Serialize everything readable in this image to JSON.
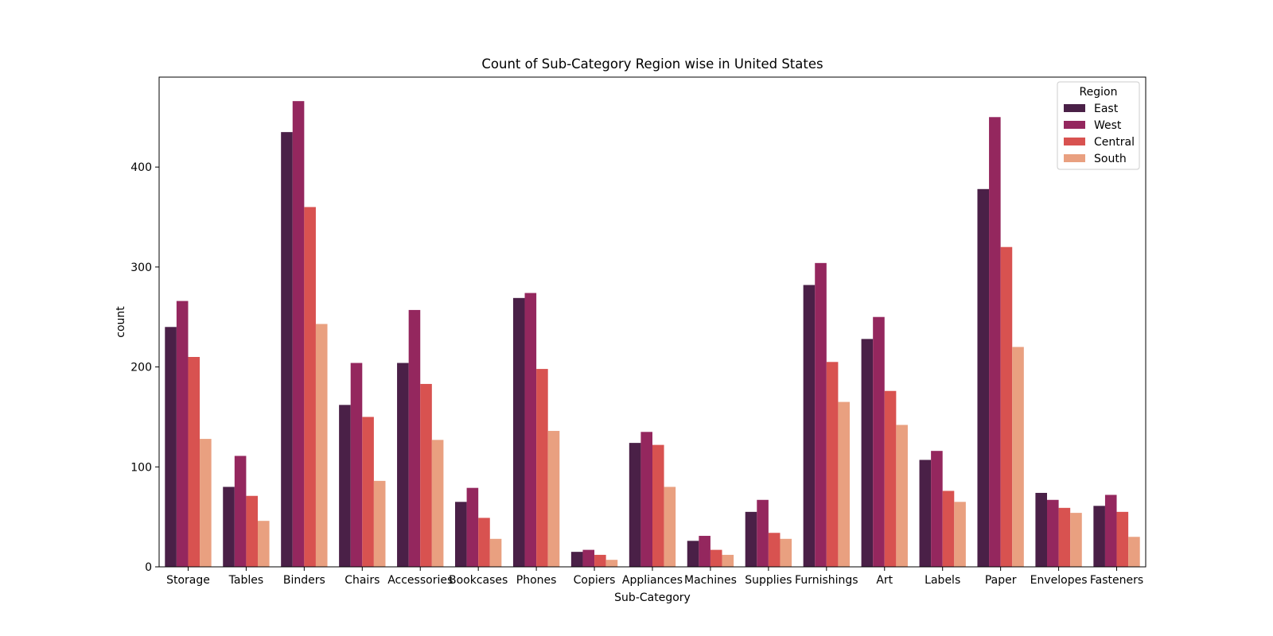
{
  "chart_data": {
    "type": "bar",
    "title": "Count of Sub-Category Region wise in United States",
    "xlabel": "Sub-Category",
    "ylabel": "count",
    "ylim": [
      0,
      490
    ],
    "yticks": [
      0,
      100,
      200,
      300,
      400
    ],
    "grid": false,
    "legend": {
      "title": "Region",
      "placement": "top-right"
    },
    "categories": [
      "Storage",
      "Tables",
      "Binders",
      "Chairs",
      "Accessories",
      "Bookcases",
      "Phones",
      "Copiers",
      "Appliances",
      "Machines",
      "Supplies",
      "Furnishings",
      "Art",
      "Labels",
      "Paper",
      "Envelopes",
      "Fasteners"
    ],
    "series": [
      {
        "name": "East",
        "color": "#4a2047",
        "values": [
          240,
          80,
          435,
          162,
          204,
          65,
          269,
          15,
          124,
          26,
          55,
          282,
          228,
          107,
          378,
          74,
          61
        ]
      },
      {
        "name": "West",
        "color": "#94275e",
        "values": [
          266,
          111,
          466,
          204,
          257,
          79,
          274,
          17,
          135,
          31,
          67,
          304,
          250,
          116,
          450,
          67,
          72
        ]
      },
      {
        "name": "Central",
        "color": "#d85250",
        "values": [
          210,
          71,
          360,
          150,
          183,
          49,
          198,
          12,
          122,
          17,
          34,
          205,
          176,
          76,
          320,
          59,
          55
        ]
      },
      {
        "name": "South",
        "color": "#e9a080",
        "values": [
          128,
          46,
          243,
          86,
          127,
          28,
          136,
          7,
          80,
          12,
          28,
          165,
          142,
          65,
          220,
          54,
          30
        ]
      }
    ]
  }
}
